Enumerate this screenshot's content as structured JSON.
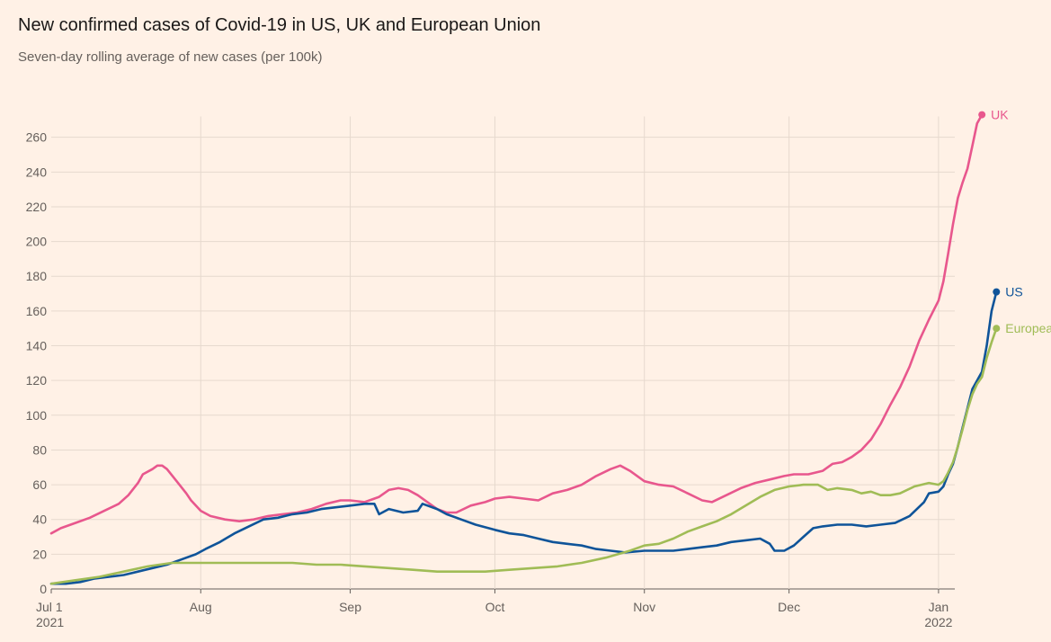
{
  "title": "New confirmed cases of Covid-19 in US, UK and European Union",
  "subtitle": "Seven-day rolling average of new cases (per 100k)",
  "chart_data": {
    "type": "line",
    "title": "New confirmed cases of Covid-19 in US, UK and European Union",
    "subtitle": "Seven-day rolling average of new cases (per 100k)",
    "ylim": [
      0,
      272
    ],
    "xlim": [
      "2021-07-01",
      "2022-01-04"
    ],
    "grid": true,
    "y_ticks": [
      0,
      20,
      40,
      60,
      80,
      100,
      120,
      140,
      160,
      180,
      200,
      220,
      240,
      260
    ],
    "x_ticks": [
      {
        "date": "2021-07-01",
        "label": "Jul 1",
        "sublabel": "2021"
      },
      {
        "date": "2021-08-01",
        "label": "Aug",
        "sublabel": ""
      },
      {
        "date": "2021-09-01",
        "label": "Sep",
        "sublabel": ""
      },
      {
        "date": "2021-10-01",
        "label": "Oct",
        "sublabel": ""
      },
      {
        "date": "2021-11-01",
        "label": "Nov",
        "sublabel": ""
      },
      {
        "date": "2021-12-01",
        "label": "Dec",
        "sublabel": ""
      },
      {
        "date": "2022-01-01",
        "label": "Jan",
        "sublabel": "2022"
      }
    ],
    "series": [
      {
        "name": "UK",
        "color": "#e8578d",
        "points": [
          [
            "2021-07-01",
            32
          ],
          [
            "2021-07-03",
            35
          ],
          [
            "2021-07-06",
            38
          ],
          [
            "2021-07-09",
            41
          ],
          [
            "2021-07-12",
            45
          ],
          [
            "2021-07-15",
            49
          ],
          [
            "2021-07-17",
            54
          ],
          [
            "2021-07-19",
            61
          ],
          [
            "2021-07-20",
            66
          ],
          [
            "2021-07-22",
            69
          ],
          [
            "2021-07-23",
            71
          ],
          [
            "2021-07-24",
            71
          ],
          [
            "2021-07-25",
            69
          ],
          [
            "2021-07-27",
            62
          ],
          [
            "2021-07-29",
            55
          ],
          [
            "2021-07-30",
            51
          ],
          [
            "2021-08-01",
            45
          ],
          [
            "2021-08-03",
            42
          ],
          [
            "2021-08-06",
            40
          ],
          [
            "2021-08-09",
            39
          ],
          [
            "2021-08-12",
            40
          ],
          [
            "2021-08-15",
            42
          ],
          [
            "2021-08-18",
            43
          ],
          [
            "2021-08-21",
            44
          ],
          [
            "2021-08-24",
            46
          ],
          [
            "2021-08-27",
            49
          ],
          [
            "2021-08-30",
            51
          ],
          [
            "2021-09-01",
            51
          ],
          [
            "2021-09-04",
            50
          ],
          [
            "2021-09-07",
            53
          ],
          [
            "2021-09-09",
            57
          ],
          [
            "2021-09-11",
            58
          ],
          [
            "2021-09-13",
            57
          ],
          [
            "2021-09-15",
            54
          ],
          [
            "2021-09-17",
            50
          ],
          [
            "2021-09-19",
            46
          ],
          [
            "2021-09-21",
            44
          ],
          [
            "2021-09-23",
            44
          ],
          [
            "2021-09-26",
            48
          ],
          [
            "2021-09-29",
            50
          ],
          [
            "2021-10-01",
            52
          ],
          [
            "2021-10-04",
            53
          ],
          [
            "2021-10-07",
            52
          ],
          [
            "2021-10-10",
            51
          ],
          [
            "2021-10-13",
            55
          ],
          [
            "2021-10-16",
            57
          ],
          [
            "2021-10-19",
            60
          ],
          [
            "2021-10-22",
            65
          ],
          [
            "2021-10-25",
            69
          ],
          [
            "2021-10-27",
            71
          ],
          [
            "2021-10-29",
            68
          ],
          [
            "2021-11-01",
            62
          ],
          [
            "2021-11-04",
            60
          ],
          [
            "2021-11-07",
            59
          ],
          [
            "2021-11-10",
            55
          ],
          [
            "2021-11-13",
            51
          ],
          [
            "2021-11-15",
            50
          ],
          [
            "2021-11-18",
            54
          ],
          [
            "2021-11-21",
            58
          ],
          [
            "2021-11-24",
            61
          ],
          [
            "2021-11-27",
            63
          ],
          [
            "2021-11-30",
            65
          ],
          [
            "2021-12-02",
            66
          ],
          [
            "2021-12-05",
            66
          ],
          [
            "2021-12-08",
            68
          ],
          [
            "2021-12-10",
            72
          ],
          [
            "2021-12-12",
            73
          ],
          [
            "2021-12-14",
            76
          ],
          [
            "2021-12-16",
            80
          ],
          [
            "2021-12-18",
            86
          ],
          [
            "2021-12-20",
            95
          ],
          [
            "2021-12-22",
            106
          ],
          [
            "2021-12-24",
            116
          ],
          [
            "2021-12-26",
            128
          ],
          [
            "2021-12-28",
            143
          ],
          [
            "2021-12-30",
            155
          ],
          [
            "2022-01-01",
            166
          ],
          [
            "2022-01-02",
            177
          ],
          [
            "2022-01-03",
            193
          ],
          [
            "2022-01-04",
            210
          ],
          [
            "2022-01-05",
            225
          ],
          [
            "2022-01-06",
            234
          ],
          [
            "2022-01-07",
            242
          ],
          [
            "2022-01-08",
            255
          ],
          [
            "2022-01-09",
            268
          ],
          [
            "2022-01-10",
            273
          ]
        ]
      },
      {
        "name": "US",
        "color": "#0f5499",
        "points": [
          [
            "2021-07-01",
            3
          ],
          [
            "2021-07-04",
            3
          ],
          [
            "2021-07-07",
            4
          ],
          [
            "2021-07-10",
            6
          ],
          [
            "2021-07-13",
            7
          ],
          [
            "2021-07-16",
            8
          ],
          [
            "2021-07-19",
            10
          ],
          [
            "2021-07-22",
            12
          ],
          [
            "2021-07-25",
            14
          ],
          [
            "2021-07-28",
            17
          ],
          [
            "2021-07-31",
            20
          ],
          [
            "2021-08-02",
            23
          ],
          [
            "2021-08-05",
            27
          ],
          [
            "2021-08-08",
            32
          ],
          [
            "2021-08-11",
            36
          ],
          [
            "2021-08-14",
            40
          ],
          [
            "2021-08-17",
            41
          ],
          [
            "2021-08-20",
            43
          ],
          [
            "2021-08-23",
            44
          ],
          [
            "2021-08-26",
            46
          ],
          [
            "2021-08-29",
            47
          ],
          [
            "2021-09-01",
            48
          ],
          [
            "2021-09-04",
            49
          ],
          [
            "2021-09-06",
            49
          ],
          [
            "2021-09-07",
            43
          ],
          [
            "2021-09-09",
            46
          ],
          [
            "2021-09-12",
            44
          ],
          [
            "2021-09-15",
            45
          ],
          [
            "2021-09-16",
            49
          ],
          [
            "2021-09-19",
            46
          ],
          [
            "2021-09-21",
            43
          ],
          [
            "2021-09-24",
            40
          ],
          [
            "2021-09-27",
            37
          ],
          [
            "2021-10-01",
            34
          ],
          [
            "2021-10-04",
            32
          ],
          [
            "2021-10-07",
            31
          ],
          [
            "2021-10-10",
            29
          ],
          [
            "2021-10-13",
            27
          ],
          [
            "2021-10-16",
            26
          ],
          [
            "2021-10-19",
            25
          ],
          [
            "2021-10-22",
            23
          ],
          [
            "2021-10-25",
            22
          ],
          [
            "2021-10-28",
            21
          ],
          [
            "2021-11-01",
            22
          ],
          [
            "2021-11-04",
            22
          ],
          [
            "2021-11-07",
            22
          ],
          [
            "2021-11-10",
            23
          ],
          [
            "2021-11-13",
            24
          ],
          [
            "2021-11-16",
            25
          ],
          [
            "2021-11-19",
            27
          ],
          [
            "2021-11-22",
            28
          ],
          [
            "2021-11-25",
            29
          ],
          [
            "2021-11-27",
            26
          ],
          [
            "2021-11-28",
            22
          ],
          [
            "2021-11-30",
            22
          ],
          [
            "2021-12-02",
            25
          ],
          [
            "2021-12-04",
            30
          ],
          [
            "2021-12-06",
            35
          ],
          [
            "2021-12-08",
            36
          ],
          [
            "2021-12-11",
            37
          ],
          [
            "2021-12-14",
            37
          ],
          [
            "2021-12-17",
            36
          ],
          [
            "2021-12-20",
            37
          ],
          [
            "2021-12-23",
            38
          ],
          [
            "2021-12-26",
            42
          ],
          [
            "2021-12-29",
            50
          ],
          [
            "2021-12-30",
            55
          ],
          [
            "2022-01-01",
            56
          ],
          [
            "2022-01-02",
            59
          ],
          [
            "2022-01-03",
            66
          ],
          [
            "2022-01-04",
            72
          ],
          [
            "2022-01-05",
            82
          ],
          [
            "2022-01-06",
            93
          ],
          [
            "2022-01-07",
            104
          ],
          [
            "2022-01-08",
            115
          ],
          [
            "2022-01-09",
            120
          ],
          [
            "2022-01-10",
            125
          ],
          [
            "2022-01-11",
            140
          ],
          [
            "2022-01-12",
            160
          ],
          [
            "2022-01-13",
            171
          ]
        ]
      },
      {
        "name": "European Union",
        "color": "#a0bc56",
        "points": [
          [
            "2021-07-01",
            3
          ],
          [
            "2021-07-06",
            5
          ],
          [
            "2021-07-11",
            7
          ],
          [
            "2021-07-16",
            10
          ],
          [
            "2021-07-21",
            13
          ],
          [
            "2021-07-26",
            15
          ],
          [
            "2021-07-31",
            15
          ],
          [
            "2021-08-05",
            15
          ],
          [
            "2021-08-10",
            15
          ],
          [
            "2021-08-15",
            15
          ],
          [
            "2021-08-20",
            15
          ],
          [
            "2021-08-25",
            14
          ],
          [
            "2021-08-30",
            14
          ],
          [
            "2021-09-04",
            13
          ],
          [
            "2021-09-09",
            12
          ],
          [
            "2021-09-14",
            11
          ],
          [
            "2021-09-19",
            10
          ],
          [
            "2021-09-24",
            10
          ],
          [
            "2021-09-29",
            10
          ],
          [
            "2021-10-04",
            11
          ],
          [
            "2021-10-09",
            12
          ],
          [
            "2021-10-14",
            13
          ],
          [
            "2021-10-19",
            15
          ],
          [
            "2021-10-24",
            18
          ],
          [
            "2021-10-29",
            22
          ],
          [
            "2021-11-01",
            25
          ],
          [
            "2021-11-04",
            26
          ],
          [
            "2021-11-07",
            29
          ],
          [
            "2021-11-10",
            33
          ],
          [
            "2021-11-13",
            36
          ],
          [
            "2021-11-16",
            39
          ],
          [
            "2021-11-19",
            43
          ],
          [
            "2021-11-22",
            48
          ],
          [
            "2021-11-25",
            53
          ],
          [
            "2021-11-28",
            57
          ],
          [
            "2021-12-01",
            59
          ],
          [
            "2021-12-04",
            60
          ],
          [
            "2021-12-07",
            60
          ],
          [
            "2021-12-09",
            57
          ],
          [
            "2021-12-11",
            58
          ],
          [
            "2021-12-14",
            57
          ],
          [
            "2021-12-16",
            55
          ],
          [
            "2021-12-18",
            56
          ],
          [
            "2021-12-20",
            54
          ],
          [
            "2021-12-22",
            54
          ],
          [
            "2021-12-24",
            55
          ],
          [
            "2021-12-27",
            59
          ],
          [
            "2021-12-30",
            61
          ],
          [
            "2022-01-01",
            60
          ],
          [
            "2022-01-02",
            62
          ],
          [
            "2022-01-03",
            67
          ],
          [
            "2022-01-04",
            73
          ],
          [
            "2022-01-05",
            82
          ],
          [
            "2022-01-06",
            92
          ],
          [
            "2022-01-07",
            103
          ],
          [
            "2022-01-08",
            112
          ],
          [
            "2022-01-09",
            118
          ],
          [
            "2022-01-10",
            122
          ],
          [
            "2022-01-11",
            133
          ],
          [
            "2022-01-12",
            142
          ],
          [
            "2022-01-13",
            150
          ]
        ]
      }
    ]
  }
}
